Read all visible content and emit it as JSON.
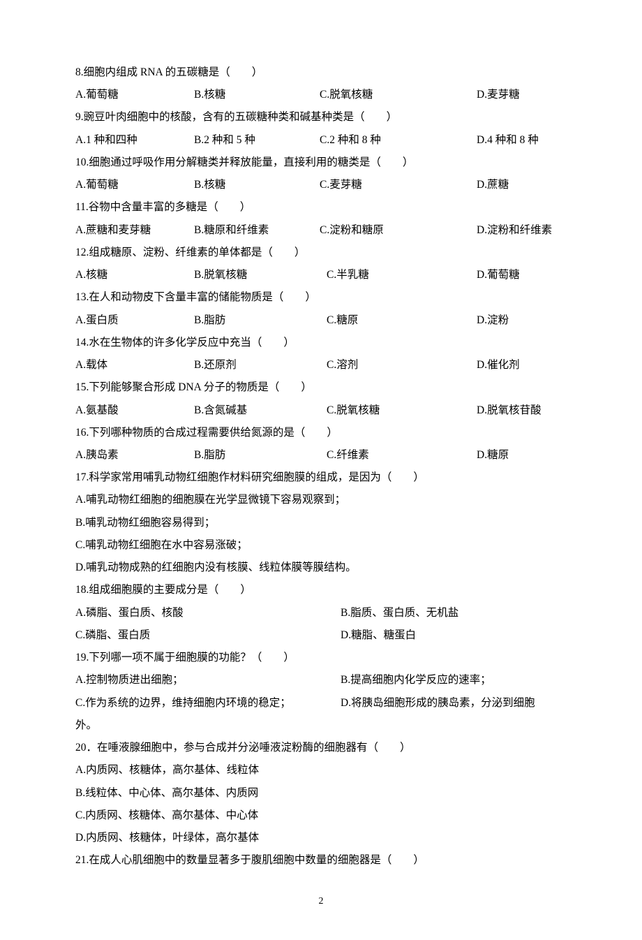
{
  "page_number": "2",
  "questions": [
    {
      "num": "8",
      "stem": "8.细胞内组成 RNA 的五碳糖是（　　）",
      "layout": "4",
      "opts": [
        "A.葡萄糖",
        "B.核糖",
        "C.脱氧核糖",
        "D.麦芽糖"
      ]
    },
    {
      "num": "9",
      "stem": "9.豌豆叶肉细胞中的核酸，含有的五碳糖种类和碱基种类是（　　）",
      "layout": "4",
      "opts": [
        "A.1 种和四种",
        "B.2 种和 5 种",
        "C.2 种和 8 种",
        "D.4 种和 8 种"
      ]
    },
    {
      "num": "10",
      "stem": "10.细胞通过呼吸作用分解糖类并释放能量，直接利用的糖类是（　　）",
      "layout": "4",
      "opts": [
        "A.葡萄糖",
        "B.核糖",
        "C.麦芽糖",
        "D.蔗糖"
      ]
    },
    {
      "num": "11",
      "stem": "11.谷物中含量丰富的多糖是（　　）",
      "layout": "4",
      "opts": [
        "A.蔗糖和麦芽糖",
        "B.糖原和纤维素",
        "C.淀粉和糖原",
        "D.淀粉和纤维素"
      ]
    },
    {
      "num": "12",
      "stem": "12.组成糖原、淀粉、纤维素的单体都是（　　）",
      "layout": "4b",
      "opts": [
        "A.核糖",
        "B.脱氧核糖",
        "C.半乳糖",
        "D.葡萄糖"
      ]
    },
    {
      "num": "13",
      "stem": "13.在人和动物皮下含量丰富的储能物质是（　　）",
      "layout": "4b",
      "opts": [
        "A.蛋白质",
        "B.脂肪",
        "C.糖原",
        "D.淀粉"
      ]
    },
    {
      "num": "14",
      "stem": "14.水在生物体的许多化学反应中充当（　　）",
      "layout": "4b",
      "opts": [
        "A.载体",
        "B.还原剂",
        "C.溶剂",
        "D.催化剂"
      ]
    },
    {
      "num": "15",
      "stem": "15.下列能够聚合形成 DNA 分子的物质是（　　）",
      "layout": "4b",
      "opts": [
        "A.氨基酸",
        "B.含氮碱基",
        "C.脱氧核糖",
        "D.脱氧核苷酸"
      ]
    },
    {
      "num": "16",
      "stem": "16.下列哪种物质的合成过程需要供给氮源的是（　　）",
      "layout": "4b",
      "opts": [
        "A.胰岛素",
        "B.脂肪",
        "C.纤维素",
        "D.糖原"
      ]
    },
    {
      "num": "17",
      "stem": "17.科学家常用哺乳动物红细胞作材料研究细胞膜的组成，是因为（　　）",
      "layout": "lines",
      "opts": [
        "A.哺乳动物红细胞的细胞膜在光学显微镜下容易观察到；",
        "B.哺乳动物红细胞容易得到；",
        "C.哺乳动物红细胞在水中容易涨破；",
        "D.哺乳动物成熟的红细胞内没有核膜、线粒体膜等膜结构。"
      ]
    },
    {
      "num": "18",
      "stem": "18.组成细胞膜的主要成分是（　　）",
      "layout": "2col",
      "opts": [
        "A.磷脂、蛋白质、核酸",
        "B.脂质、蛋白质、无机盐",
        "C.磷脂、蛋白质",
        "D.糖脂、糖蛋白"
      ]
    },
    {
      "num": "19",
      "stem": "19.下列哪一项不属于细胞膜的功能？（　　）",
      "layout": "2col-wrap",
      "opts": [
        "A.控制物质进出细胞；",
        "B.提高细胞内化学反应的速率；",
        "C.作为系统的边界，维持细胞内环境的稳定；",
        "D.将胰岛细胞形成的胰岛素，分泌到细胞"
      ],
      "tail": "外。"
    },
    {
      "num": "20",
      "stem": "20．在唾液腺细胞中，参与合成并分泌唾液淀粉酶的细胞器有（　　）",
      "layout": "lines",
      "opts": [
        "A.内质网、核糖体，高尔基体、线粒体",
        "B.线粒体、中心体、高尔基体、内质网",
        "C.内质网、核糖体、高尔基体、中心体",
        "D.内质网、核糖体，叶绿体，高尔基体"
      ]
    },
    {
      "num": "21",
      "stem": "21.在成人心肌细胞中的数量显著多于腹肌细胞中数量的细胞器是（　　）",
      "layout": "none",
      "opts": []
    }
  ]
}
